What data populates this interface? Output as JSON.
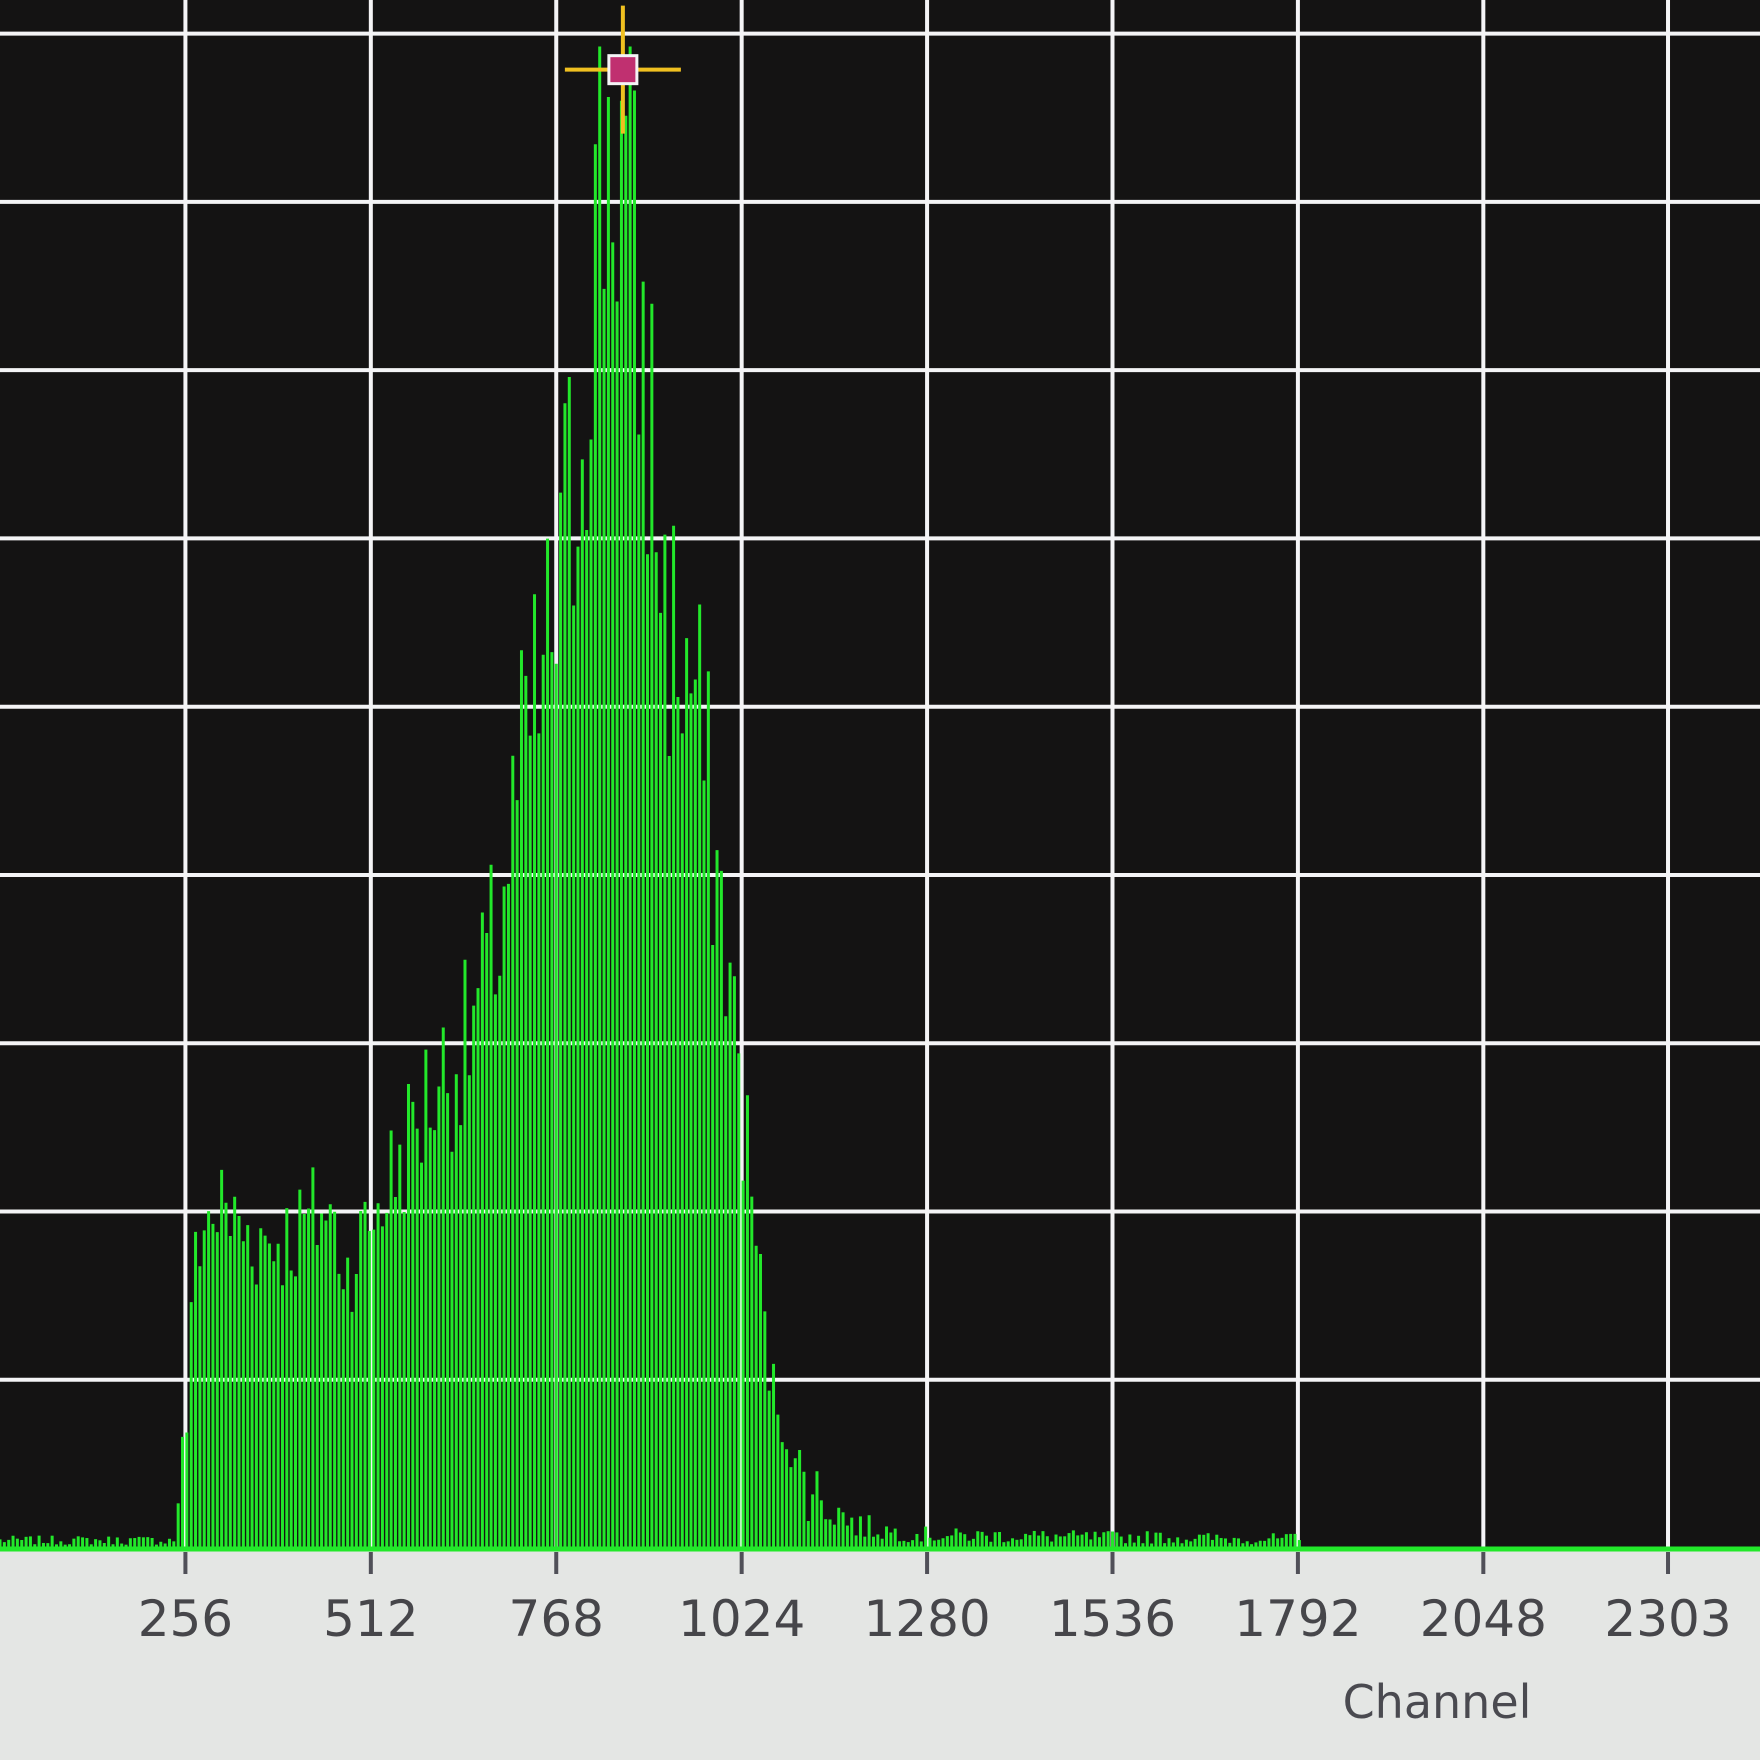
{
  "chart_data": {
    "type": "bar",
    "xlabel": "Channel",
    "ylabel": "",
    "title": "",
    "xlim": [
      0,
      2430
    ],
    "ylim": [
      0,
      1
    ],
    "x_tick_labels": [
      "256",
      "512",
      "768",
      "1024",
      "1280",
      "1536",
      "1792",
      "2048",
      "2303"
    ],
    "x_tick_values": [
      256,
      512,
      768,
      1024,
      1280,
      1536,
      1792,
      2048,
      2303
    ],
    "grid": true,
    "y_axis_labels_visible": false,
    "peak_marker": {
      "x": 860,
      "y": 0.955
    },
    "colors": {
      "plot_background": "#141313",
      "grid": "#f4f4f6",
      "bars": "#22e82a",
      "marker": "#f0c020",
      "axis_background": "#e4e6e4"
    },
    "envelope_x": [
      0,
      240,
      250,
      258,
      270,
      300,
      350,
      400,
      450,
      480,
      500,
      520,
      540,
      560,
      600,
      640,
      680,
      720,
      760,
      790,
      800,
      820,
      840,
      860,
      880,
      900,
      920,
      960,
      1000,
      1040,
      1060,
      1080,
      1100,
      1140,
      1180,
      1240,
      1300,
      1400,
      1500,
      1600,
      1700,
      1760,
      1790,
      1800,
      1850,
      2430
    ],
    "envelope_y": [
      0.005,
      0.005,
      0.06,
      0.08,
      0.2,
      0.22,
      0.2,
      0.2,
      0.22,
      0.18,
      0.2,
      0.22,
      0.24,
      0.26,
      0.3,
      0.32,
      0.38,
      0.5,
      0.58,
      0.68,
      0.72,
      0.85,
      0.92,
      0.9,
      0.8,
      0.72,
      0.6,
      0.55,
      0.4,
      0.22,
      0.12,
      0.08,
      0.05,
      0.03,
      0.015,
      0.01,
      0.008,
      0.008,
      0.007,
      0.007,
      0.006,
      0.006,
      0.006,
      0.003,
      0.002,
      0.002
    ]
  }
}
